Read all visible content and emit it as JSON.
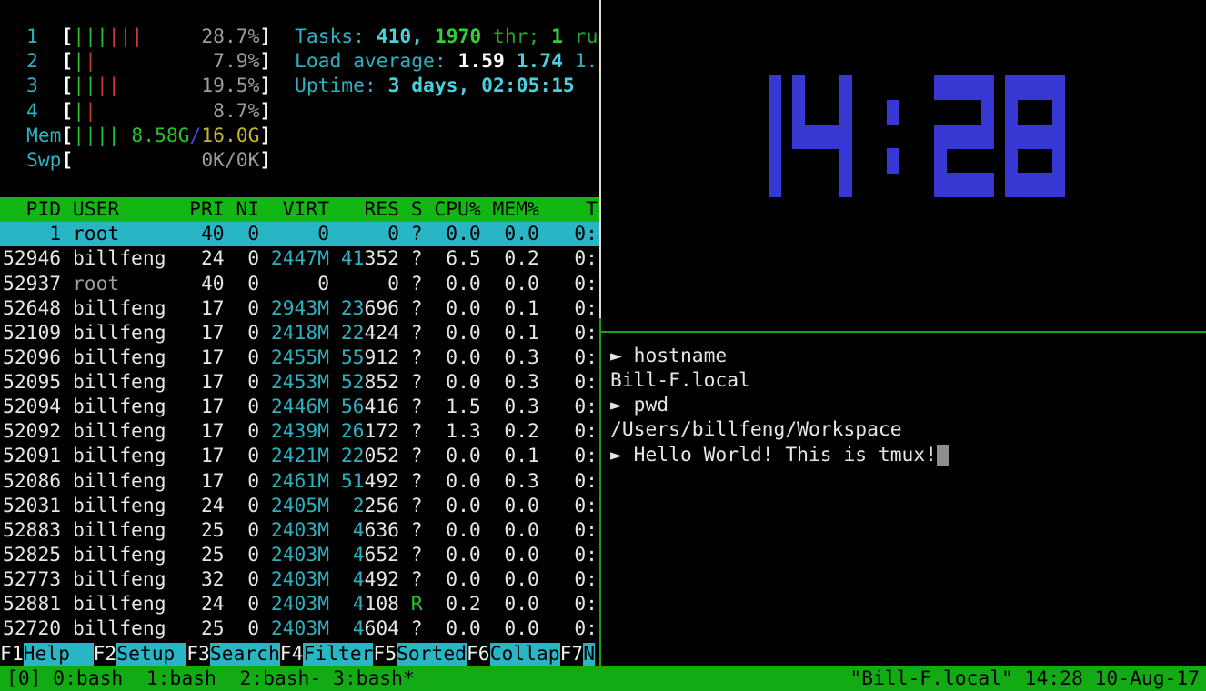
{
  "colors": {
    "background": "#000000",
    "status_green": "#13ab13",
    "header_green": "#13b713",
    "selection_cyan": "#28b5c4",
    "text_cyan": "#2cb1c0",
    "text_green": "#27c227",
    "text_red": "#c93a30",
    "text_yellow": "#c2b62c",
    "text_grey": "#9c9c9c",
    "clock_blue": "#3737d2",
    "border_inactive": "#e3e0d6",
    "border_active": "#16a416",
    "cursor_grey": "#8f8f8f"
  },
  "htop": {
    "meters": [
      {
        "label": "1",
        "bars": [
          "green",
          "green",
          "green",
          "red",
          "red",
          "red"
        ],
        "value": [
          {
            "t": "28.7%",
            "c": "grey"
          }
        ]
      },
      {
        "label": "2",
        "bars": [
          "green",
          "red"
        ],
        "value": [
          {
            "t": "7.9%",
            "c": "grey"
          }
        ]
      },
      {
        "label": "3",
        "bars": [
          "green",
          "green",
          "red",
          "red"
        ],
        "value": [
          {
            "t": "19.5%",
            "c": "grey"
          }
        ]
      },
      {
        "label": "4",
        "bars": [
          "green",
          "red"
        ],
        "value": [
          {
            "t": "8.7%",
            "c": "grey"
          }
        ]
      },
      {
        "label": "Mem",
        "bars": [
          "green",
          "green",
          "green",
          "green"
        ],
        "value": [
          {
            "t": "8.58G",
            "c": "green"
          },
          {
            "t": "/",
            "c": "blue"
          },
          {
            "t": "16.0G",
            "c": "yellow"
          }
        ]
      },
      {
        "label": "Swp",
        "bars": [],
        "value": [
          {
            "t": "0K/0K",
            "c": "grey"
          }
        ]
      }
    ],
    "info_lines": [
      [
        {
          "t": "Tasks: ",
          "c": "cyan"
        },
        {
          "t": "410, ",
          "c": "cyanb"
        },
        {
          "t": "1970",
          "c": "greenb"
        },
        {
          "t": " thr; ",
          "c": "dgreen"
        },
        {
          "t": "1",
          "c": "greenb"
        },
        {
          "t": " ru",
          "c": "dgreen"
        }
      ],
      [
        {
          "t": "Load average: ",
          "c": "cyan"
        },
        {
          "t": "1.59 ",
          "c": "whiteb"
        },
        {
          "t": "1.74 ",
          "c": "cyanb"
        },
        {
          "t": "1.",
          "c": "cyan"
        }
      ],
      [
        {
          "t": "Uptime: ",
          "c": "cyan"
        },
        {
          "t": "3 days, 02:05:15",
          "c": "cyanb"
        }
      ]
    ],
    "columns": {
      "pid": "PID",
      "user": "USER",
      "pri": "PRI",
      "ni": "NI",
      "virt": "VIRT",
      "res": "RES",
      "s": "S",
      "cpu": "CPU%",
      "mem": "MEM%",
      "time": "T"
    },
    "processes": [
      {
        "pid": "1",
        "user": "root",
        "pri": "40",
        "ni": "0",
        "virt": "0",
        "res_hi": "",
        "res_lo": "0",
        "s": "?",
        "cpu": "0.0",
        "mem": "0.0",
        "time": "0:",
        "selected": true
      },
      {
        "pid": "52946",
        "user": "billfeng",
        "pri": "24",
        "ni": "0",
        "virt": "2447M",
        "res_hi": "41",
        "res_lo": "352",
        "s": "?",
        "cpu": "6.5",
        "mem": "0.2",
        "time": "0:"
      },
      {
        "pid": "52937",
        "user": "root",
        "dim": true,
        "pri": "40",
        "ni": "0",
        "virt": "0",
        "res_hi": "",
        "res_lo": "0",
        "s": "?",
        "cpu": "0.0",
        "mem": "0.0",
        "time": "0:"
      },
      {
        "pid": "52648",
        "user": "billfeng",
        "pri": "17",
        "ni": "0",
        "virt": "2943M",
        "res_hi": "23",
        "res_lo": "696",
        "s": "?",
        "cpu": "0.0",
        "mem": "0.1",
        "time": "0:"
      },
      {
        "pid": "52109",
        "user": "billfeng",
        "pri": "17",
        "ni": "0",
        "virt": "2418M",
        "res_hi": "22",
        "res_lo": "424",
        "s": "?",
        "cpu": "0.0",
        "mem": "0.1",
        "time": "0:"
      },
      {
        "pid": "52096",
        "user": "billfeng",
        "pri": "17",
        "ni": "0",
        "virt": "2455M",
        "res_hi": "55",
        "res_lo": "912",
        "s": "?",
        "cpu": "0.0",
        "mem": "0.3",
        "time": "0:"
      },
      {
        "pid": "52095",
        "user": "billfeng",
        "pri": "17",
        "ni": "0",
        "virt": "2453M",
        "res_hi": "52",
        "res_lo": "852",
        "s": "?",
        "cpu": "0.0",
        "mem": "0.3",
        "time": "0:"
      },
      {
        "pid": "52094",
        "user": "billfeng",
        "pri": "17",
        "ni": "0",
        "virt": "2446M",
        "res_hi": "56",
        "res_lo": "416",
        "s": "?",
        "cpu": "1.5",
        "mem": "0.3",
        "time": "0:"
      },
      {
        "pid": "52092",
        "user": "billfeng",
        "pri": "17",
        "ni": "0",
        "virt": "2439M",
        "res_hi": "26",
        "res_lo": "172",
        "s": "?",
        "cpu": "1.3",
        "mem": "0.2",
        "time": "0:"
      },
      {
        "pid": "52091",
        "user": "billfeng",
        "pri": "17",
        "ni": "0",
        "virt": "2421M",
        "res_hi": "22",
        "res_lo": "052",
        "s": "?",
        "cpu": "0.0",
        "mem": "0.1",
        "time": "0:"
      },
      {
        "pid": "52086",
        "user": "billfeng",
        "pri": "17",
        "ni": "0",
        "virt": "2461M",
        "res_hi": "51",
        "res_lo": "492",
        "s": "?",
        "cpu": "0.0",
        "mem": "0.3",
        "time": "0:"
      },
      {
        "pid": "52031",
        "user": "billfeng",
        "pri": "24",
        "ni": "0",
        "virt": "2405M",
        "res_hi": "2",
        "res_lo": "256",
        "s": "?",
        "cpu": "0.0",
        "mem": "0.0",
        "time": "0:"
      },
      {
        "pid": "52883",
        "user": "billfeng",
        "pri": "25",
        "ni": "0",
        "virt": "2403M",
        "res_hi": "4",
        "res_lo": "636",
        "s": "?",
        "cpu": "0.0",
        "mem": "0.0",
        "time": "0:"
      },
      {
        "pid": "52825",
        "user": "billfeng",
        "pri": "25",
        "ni": "0",
        "virt": "2403M",
        "res_hi": "4",
        "res_lo": "652",
        "s": "?",
        "cpu": "0.0",
        "mem": "0.0",
        "time": "0:"
      },
      {
        "pid": "52773",
        "user": "billfeng",
        "pri": "32",
        "ni": "0",
        "virt": "2403M",
        "res_hi": "4",
        "res_lo": "492",
        "s": "?",
        "cpu": "0.0",
        "mem": "0.0",
        "time": "0:"
      },
      {
        "pid": "52881",
        "user": "billfeng",
        "pri": "24",
        "ni": "0",
        "virt": "2403M",
        "res_hi": "4",
        "res_lo": "108",
        "s": "R",
        "cpu": "0.2",
        "mem": "0.0",
        "time": "0:"
      },
      {
        "pid": "52720",
        "user": "billfeng",
        "pri": "25",
        "ni": "0",
        "virt": "2403M",
        "res_hi": "4",
        "res_lo": "604",
        "s": "?",
        "cpu": "0.0",
        "mem": "0.0",
        "time": "0:"
      }
    ],
    "fkeys": [
      {
        "key": "F1",
        "label": "Help  "
      },
      {
        "key": "F2",
        "label": "Setup "
      },
      {
        "key": "F3",
        "label": "Search"
      },
      {
        "key": "F4",
        "label": "Filter"
      },
      {
        "key": "F5",
        "label": "Sorted"
      },
      {
        "key": "F6",
        "label": "Collap"
      },
      {
        "key": "F7",
        "label": "N"
      }
    ]
  },
  "clock": {
    "time": "14:28",
    "color": "#3737d2"
  },
  "terminal": {
    "prompt_char": "►",
    "lines": [
      {
        "prompt": true,
        "text": "hostname"
      },
      {
        "prompt": false,
        "text": "Bill-F.local"
      },
      {
        "prompt": true,
        "text": "pwd"
      },
      {
        "prompt": false,
        "text": "/Users/billfeng/Workspace"
      },
      {
        "prompt": true,
        "text": "Hello World! This is tmux!",
        "cursor": true
      }
    ]
  },
  "status_bar": {
    "left": "[0] 0:bash  1:bash  2:bash- 3:bash*",
    "right": "\"Bill-F.local\" 14:28 10-Aug-17"
  }
}
